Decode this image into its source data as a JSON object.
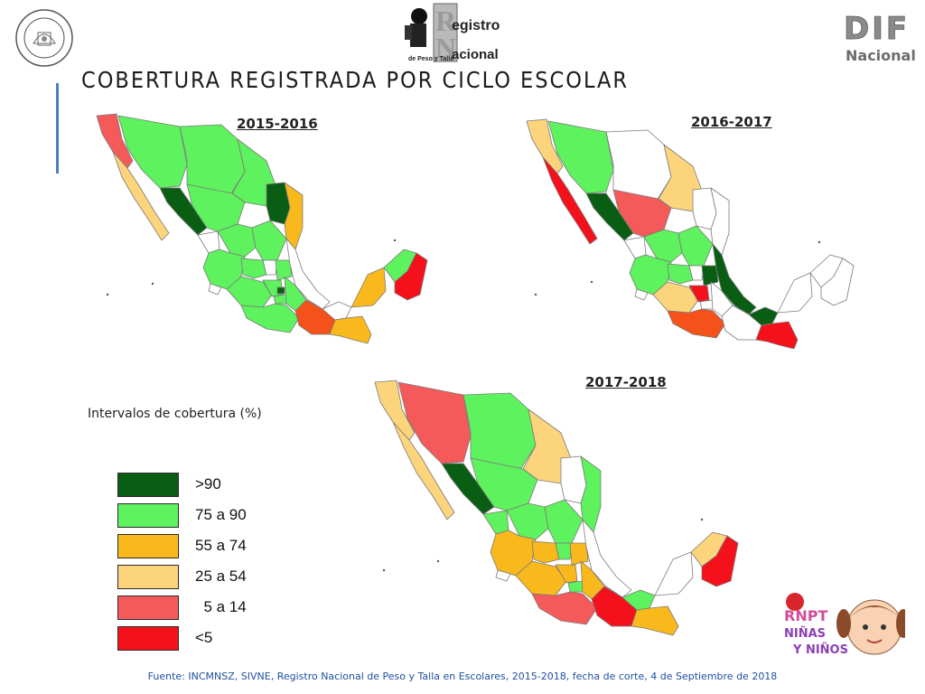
{
  "header": {
    "title": "COBERTURA REGISTRADA POR CICLO ESCOLAR",
    "seal_text": "INSTITUTO NACIONAL DE CIENCIAS MEDICAS Y NUTRICION SALVADOR ZUBIRAN",
    "rnpt_logo": {
      "line1": "egistro",
      "line2": "acional",
      "line3": "de Peso y Talla"
    },
    "dif_logo": {
      "big": "DIF",
      "small": "Nacional"
    }
  },
  "maps": [
    {
      "period": "2015-2016"
    },
    {
      "period": "2016-2017"
    },
    {
      "period": "2017-2018"
    }
  ],
  "legend": {
    "title": "Intervalos de cobertura (%)",
    "items": [
      {
        "label": ">90",
        "color": "#0a5e14"
      },
      {
        "label": "75 a 90",
        "color": "#5ef25e"
      },
      {
        "label": "55 a 74",
        "color": "#f9b81c"
      },
      {
        "label": "25 a 54",
        "color": "#fcd47c"
      },
      {
        "label": "  5 a 14",
        "color": "#f55a5a"
      },
      {
        "label": "<5",
        "color": "#f4111b"
      }
    ],
    "no_data_color": "#ffffff"
  },
  "kids_logo": {
    "top": "RNPT",
    "line1": "NIÑAS",
    "line2": "Y NIÑOS"
  },
  "footer": "Fuente: INCMNSZ, SIVNE, Registro Nacional de Peso y Talla en Escolares, 2015-2018, fecha de corte, 4 de Septiembre de 2018"
}
